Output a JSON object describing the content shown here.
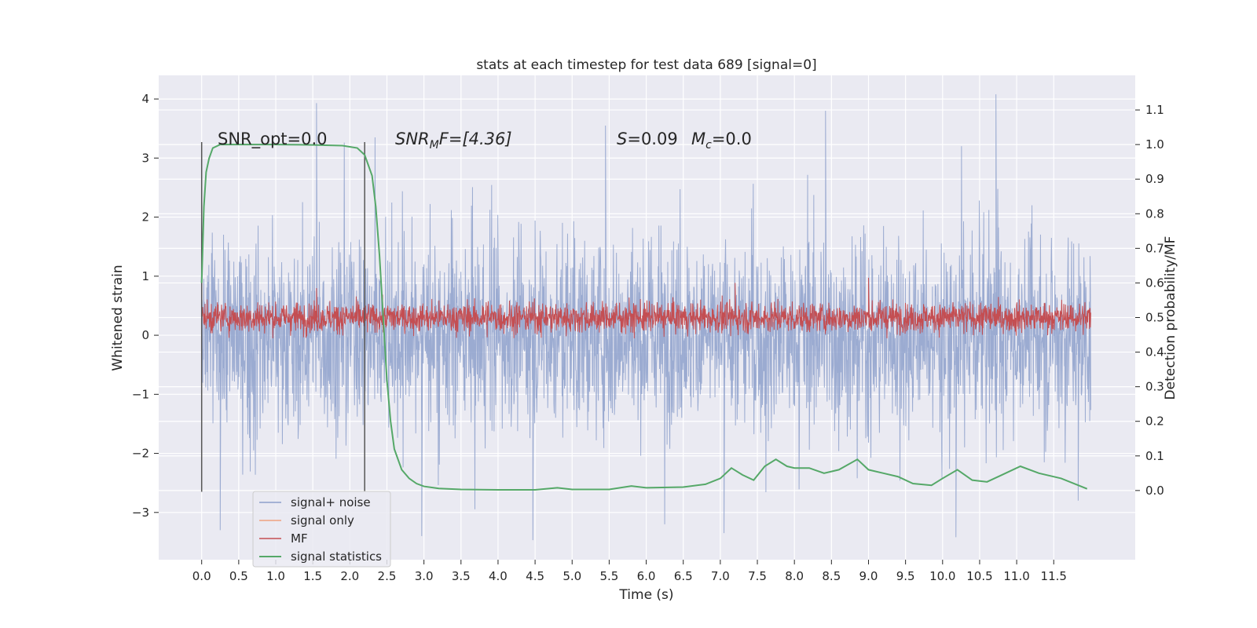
{
  "chart_data": {
    "type": "line",
    "title": "stats at each timestep for test data 689 [signal=0]",
    "xlabel": "Time (s)",
    "ylabel": "Whitened strain",
    "y2label": "Detection probability/MF",
    "xlim": [
      -0.58,
      12.6
    ],
    "ylim": [
      -3.8,
      4.4
    ],
    "y2lim": [
      -0.2,
      1.2
    ],
    "xticks": [
      "0.0",
      "0.5",
      "1.0",
      "1.5",
      "2.0",
      "2.5",
      "3.0",
      "3.5",
      "4.0",
      "4.5",
      "5.0",
      "5.5",
      "6.0",
      "6.5",
      "7.0",
      "7.5",
      "8.0",
      "8.5",
      "9.0",
      "9.5",
      "10.0",
      "10.5",
      "11.0",
      "11.5"
    ],
    "yticks": [
      "4",
      "3",
      "2",
      "1",
      "0",
      "−1",
      "−2",
      "−3"
    ],
    "y2ticks": [
      "1.1",
      "1.0",
      "0.9",
      "0.8",
      "0.7",
      "0.6",
      "0.5",
      "0.4",
      "0.3",
      "0.2",
      "0.1",
      "0.0"
    ],
    "grid": true,
    "legend_position": "lower-left",
    "vlines": {
      "x": [
        0.0,
        2.2
      ],
      "ymin": -2.65,
      "ymax": 3.27
    },
    "annotations": {
      "snr_opt": "SNR_opt=0.0",
      "snr_mf_main": "SNR",
      "snr_mf_sub": "M",
      "snr_mf_rest": "F=[4.36]",
      "s_main": "S",
      "s_rest": "=0.09",
      "mc_main": "M",
      "mc_sub": "c",
      "mc_rest": "=0.0"
    },
    "series": [
      {
        "name": "signal+ noise",
        "color": "#8da0cb",
        "axis": "left",
        "kind": "noise",
        "duration": 12.0,
        "amplitude_envelope": [
          1.5,
          2.3
        ],
        "peaks": [
          [
            1.55,
            3.93
          ],
          [
            10.72,
            4.08
          ],
          [
            8.42,
            3.8
          ],
          [
            5.45,
            3.55
          ],
          [
            4.47,
            -3.47
          ],
          [
            10.18,
            -3.42
          ],
          [
            0.25,
            -3.3
          ],
          [
            2.97,
            -3.4
          ],
          [
            7.05,
            -3.35
          ],
          [
            11.83,
            -2.8
          ]
        ]
      },
      {
        "name": "signal only",
        "color": "#f0a27f",
        "axis": "left",
        "kind": "flat",
        "values": []
      },
      {
        "name": "MF",
        "color": "#c44e52",
        "axis": "right",
        "kind": "mf",
        "duration": 12.0,
        "baseline": 0.5,
        "peaks": [
          [
            7.2,
            0.6
          ],
          [
            9.0,
            0.615
          ],
          [
            1.55,
            0.585
          ]
        ]
      },
      {
        "name": "signal statistics",
        "color": "#55a868",
        "axis": "right",
        "x": [
          0.0,
          0.03,
          0.06,
          0.1,
          0.15,
          0.25,
          0.5,
          1.0,
          1.5,
          1.9,
          2.1,
          2.2,
          2.3,
          2.35,
          2.4,
          2.45,
          2.5,
          2.55,
          2.6,
          2.7,
          2.8,
          2.9,
          3.0,
          3.2,
          3.5,
          4.0,
          4.5,
          4.8,
          5.0,
          5.5,
          5.8,
          6.0,
          6.5,
          6.8,
          7.0,
          7.15,
          7.3,
          7.45,
          7.6,
          7.75,
          7.9,
          8.0,
          8.2,
          8.4,
          8.6,
          8.85,
          9.0,
          9.2,
          9.4,
          9.6,
          9.85,
          10.0,
          10.2,
          10.4,
          10.6,
          10.85,
          11.05,
          11.3,
          11.6,
          11.95
        ],
        "y": [
          0.6,
          0.82,
          0.92,
          0.96,
          0.99,
          1.0,
          1.0,
          1.0,
          0.999,
          0.997,
          0.99,
          0.97,
          0.91,
          0.82,
          0.68,
          0.5,
          0.32,
          0.2,
          0.12,
          0.06,
          0.035,
          0.02,
          0.012,
          0.006,
          0.003,
          0.002,
          0.002,
          0.008,
          0.003,
          0.003,
          0.013,
          0.008,
          0.01,
          0.018,
          0.035,
          0.065,
          0.045,
          0.03,
          0.07,
          0.09,
          0.07,
          0.065,
          0.065,
          0.05,
          0.06,
          0.09,
          0.06,
          0.05,
          0.04,
          0.02,
          0.015,
          0.035,
          0.06,
          0.03,
          0.025,
          0.05,
          0.07,
          0.05,
          0.035,
          0.005
        ]
      }
    ]
  }
}
